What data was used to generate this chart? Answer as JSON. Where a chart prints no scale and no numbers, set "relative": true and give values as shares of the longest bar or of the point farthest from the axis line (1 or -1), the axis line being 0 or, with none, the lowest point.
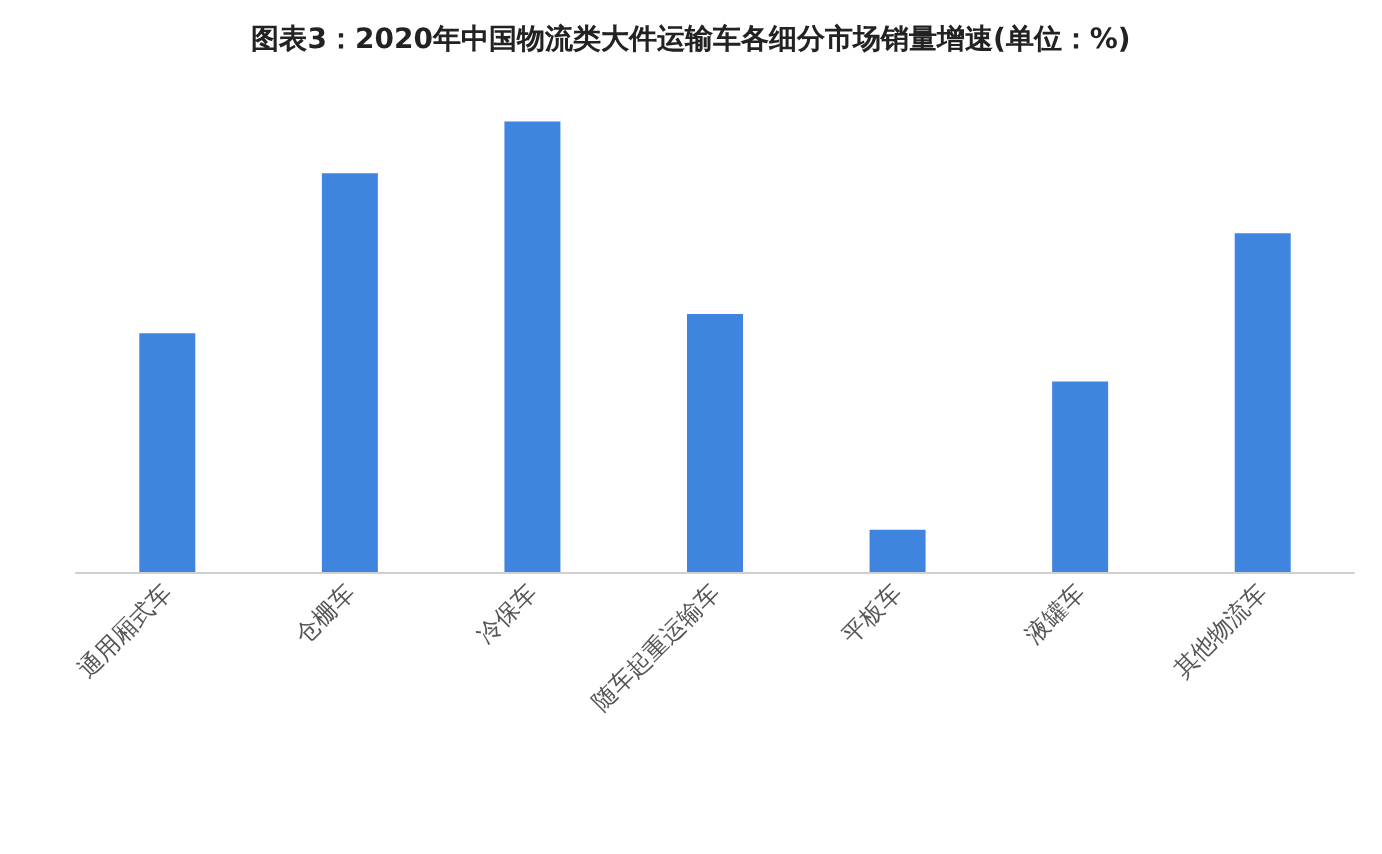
{
  "chart_data": {
    "type": "bar",
    "title": "图表3：2020年中国物流类大件运输车各细分市场销量增速(单位：%)",
    "categories": [
      "通用厢式车",
      "仓栅车",
      "冷保车",
      "随车起重运输车",
      "平板车",
      "液罐车",
      "其他物流车"
    ],
    "values": [
      0.53,
      0.885,
      1,
      0.573,
      0.094,
      0.423,
      0.752
    ],
    "color": "#3f85e0",
    "relative": true
  }
}
